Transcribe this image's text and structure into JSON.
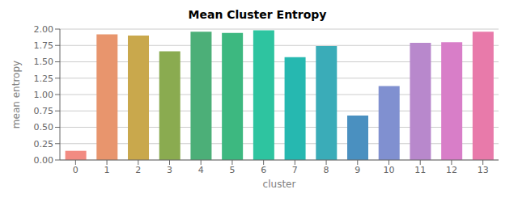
{
  "chart_data": {
    "type": "bar",
    "title": "Mean Cluster Entropy",
    "xlabel": "cluster",
    "ylabel": "mean entropy",
    "categories": [
      "0",
      "1",
      "2",
      "3",
      "4",
      "5",
      "6",
      "7",
      "8",
      "9",
      "10",
      "11",
      "12",
      "13"
    ],
    "values": [
      0.14,
      1.92,
      1.9,
      1.66,
      1.96,
      1.94,
      1.98,
      1.57,
      1.74,
      0.68,
      1.13,
      1.79,
      1.8,
      1.96
    ],
    "colors": [
      "#f28b82",
      "#e8956d",
      "#c9a84c",
      "#8aab50",
      "#4caf78",
      "#3db880",
      "#2ec4a0",
      "#26b8b0",
      "#3aacb8",
      "#4a90c0",
      "#8090d0",
      "#b888cc",
      "#d87ec8",
      "#e87aaa"
    ],
    "ylim": [
      0,
      2.0
    ],
    "yticks": [
      {
        "value": 0,
        "label": "0.00"
      },
      0.25,
      {
        "value": 0.5,
        "label": "0.50"
      },
      0.75,
      {
        "value": 1.0,
        "label": "1.00"
      },
      1.25,
      {
        "value": 1.5,
        "label": "1.50"
      },
      1.75,
      {
        "value": 2.0,
        "label": "2.00"
      }
    ],
    "grid": true
  }
}
